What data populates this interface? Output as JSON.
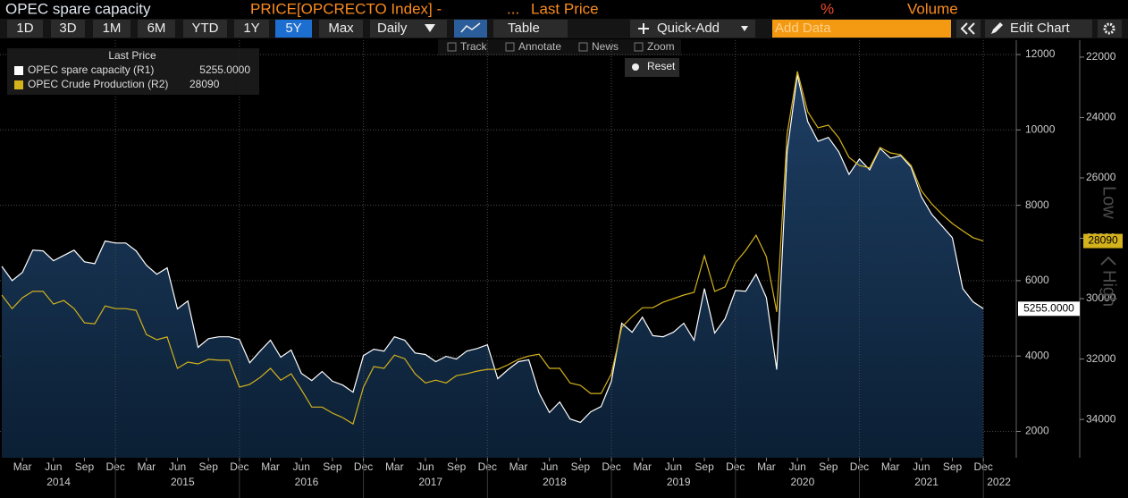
{
  "header": {
    "title": "OPEC spare capacity",
    "ticker": "PRICE[OPCRECTO Index] -",
    "ellipsis": "...",
    "field": "Last Price",
    "percent": "%",
    "volume": "Volume"
  },
  "toolbar": {
    "ranges": [
      "1D",
      "3D",
      "1M",
      "6M",
      "YTD",
      "1Y",
      "5Y",
      "Max"
    ],
    "selected_range": "5Y",
    "frequency": "Daily",
    "table": "Table",
    "quick_add": "Quick-Add",
    "add_data": "Add Data",
    "edit_chart": "Edit Chart"
  },
  "tools": [
    "Track",
    "Annotate",
    "News",
    "Zoom"
  ],
  "reset": "Reset",
  "chart_data": {
    "type": "line",
    "legend_title": "Last Price",
    "x": [
      "2014-01",
      "2014-02",
      "2014-03",
      "2014-04",
      "2014-05",
      "2014-06",
      "2014-07",
      "2014-08",
      "2014-09",
      "2014-10",
      "2014-11",
      "2014-12",
      "2015-01",
      "2015-02",
      "2015-03",
      "2015-04",
      "2015-05",
      "2015-06",
      "2015-07",
      "2015-08",
      "2015-09",
      "2015-10",
      "2015-11",
      "2015-12",
      "2016-01",
      "2016-02",
      "2016-03",
      "2016-04",
      "2016-05",
      "2016-06",
      "2016-07",
      "2016-08",
      "2016-09",
      "2016-10",
      "2016-11",
      "2016-12",
      "2017-01",
      "2017-02",
      "2017-03",
      "2017-04",
      "2017-05",
      "2017-06",
      "2017-07",
      "2017-08",
      "2017-09",
      "2017-10",
      "2017-11",
      "2017-12",
      "2018-01",
      "2018-02",
      "2018-03",
      "2018-04",
      "2018-05",
      "2018-06",
      "2018-07",
      "2018-08",
      "2018-09",
      "2018-10",
      "2018-11",
      "2018-12",
      "2019-01",
      "2019-02",
      "2019-03",
      "2019-04",
      "2019-05",
      "2019-06",
      "2019-07",
      "2019-08",
      "2019-09",
      "2019-10",
      "2019-11",
      "2019-12",
      "2020-01",
      "2020-02",
      "2020-03",
      "2020-04",
      "2020-05",
      "2020-06",
      "2020-07",
      "2020-08",
      "2020-09",
      "2020-10",
      "2020-11",
      "2020-12",
      "2021-01",
      "2021-02",
      "2021-03",
      "2021-04",
      "2021-05",
      "2021-06",
      "2021-07",
      "2021-08",
      "2021-09",
      "2021-10",
      "2021-11",
      "2021-12"
    ],
    "xticks": [
      {
        "value": "2014-03",
        "label": "Mar"
      },
      {
        "value": "2014-06",
        "label": "Jun"
      },
      {
        "value": "2014-09",
        "label": "Sep"
      },
      {
        "value": "2014-12",
        "label": "Dec"
      },
      {
        "value": "2015-03",
        "label": "Mar"
      },
      {
        "value": "2015-06",
        "label": "Jun"
      },
      {
        "value": "2015-09",
        "label": "Sep"
      },
      {
        "value": "2015-12",
        "label": "Dec"
      },
      {
        "value": "2016-03",
        "label": "Mar"
      },
      {
        "value": "2016-06",
        "label": "Jun"
      },
      {
        "value": "2016-09",
        "label": "Sep"
      },
      {
        "value": "2016-12",
        "label": "Dec"
      },
      {
        "value": "2017-03",
        "label": "Mar"
      },
      {
        "value": "2017-06",
        "label": "Jun"
      },
      {
        "value": "2017-09",
        "label": "Sep"
      },
      {
        "value": "2017-12",
        "label": "Dec"
      },
      {
        "value": "2018-03",
        "label": "Mar"
      },
      {
        "value": "2018-06",
        "label": "Jun"
      },
      {
        "value": "2018-09",
        "label": "Sep"
      },
      {
        "value": "2018-12",
        "label": "Dec"
      },
      {
        "value": "2019-03",
        "label": "Mar"
      },
      {
        "value": "2019-06",
        "label": "Jun"
      },
      {
        "value": "2019-09",
        "label": "Sep"
      },
      {
        "value": "2019-12",
        "label": "Dec"
      },
      {
        "value": "2020-03",
        "label": "Mar"
      },
      {
        "value": "2020-06",
        "label": "Jun"
      },
      {
        "value": "2020-09",
        "label": "Sep"
      },
      {
        "value": "2020-12",
        "label": "Dec"
      },
      {
        "value": "2021-03",
        "label": "Mar"
      },
      {
        "value": "2021-06",
        "label": "Jun"
      },
      {
        "value": "2021-09",
        "label": "Sep"
      },
      {
        "value": "2021-12",
        "label": "Dec"
      }
    ],
    "x_years": [
      2014,
      2015,
      2016,
      2017,
      2018,
      2019,
      2020,
      2021,
      2022
    ],
    "series": [
      {
        "name": "OPEC spare capacity (R1)",
        "color": "#ffffff",
        "fill": "#1b3a5c",
        "axis": "y",
        "last_label": "5255.0000",
        "values": [
          6380,
          6000,
          6220,
          6810,
          6790,
          6530,
          6670,
          6810,
          6500,
          6450,
          7050,
          7000,
          7000,
          6790,
          6410,
          6170,
          6340,
          5250,
          5460,
          4230,
          4460,
          4510,
          4510,
          4440,
          3820,
          4130,
          4420,
          3970,
          4160,
          3540,
          3350,
          3590,
          3330,
          3230,
          3040,
          4010,
          4180,
          4130,
          4510,
          4420,
          4080,
          4040,
          3850,
          3990,
          3920,
          4130,
          4200,
          4300,
          3400,
          3640,
          3850,
          3900,
          3020,
          2500,
          2780,
          2330,
          2240,
          2520,
          2660,
          3330,
          4870,
          4630,
          5030,
          4540,
          4510,
          4630,
          4870,
          4420,
          5790,
          4610,
          4990,
          5740,
          5720,
          6170,
          5550,
          3640,
          9420,
          11460,
          10220,
          9700,
          9800,
          9420,
          8820,
          9230,
          8940,
          9510,
          9250,
          9320,
          9010,
          8230,
          7760,
          7450,
          7140,
          5790,
          5440,
          5255
        ]
      },
      {
        "name": "OPEC Crude Production (R2)",
        "color": "#d4b21c",
        "axis": "y2",
        "values": [
          29880,
          30330,
          29970,
          29760,
          29760,
          30180,
          30060,
          30330,
          30800,
          30830,
          30240,
          30330,
          30330,
          30390,
          31190,
          31360,
          31270,
          32310,
          32100,
          32160,
          32010,
          32040,
          32040,
          32930,
          32840,
          32610,
          32310,
          32700,
          32490,
          33020,
          33590,
          33590,
          33790,
          33940,
          34150,
          32930,
          32250,
          32310,
          31870,
          31990,
          32490,
          32790,
          32700,
          32790,
          32550,
          32490,
          32400,
          32340,
          32340,
          32190,
          32010,
          31900,
          31840,
          32310,
          32310,
          32790,
          32870,
          33140,
          33140,
          32490,
          30950,
          30590,
          30300,
          30300,
          30120,
          30000,
          29880,
          29790,
          28580,
          29760,
          29610,
          28810,
          28400,
          27900,
          28610,
          30440,
          24550,
          22470,
          23810,
          24340,
          24250,
          24670,
          25320,
          25590,
          25670,
          24990,
          25170,
          25230,
          25590,
          26420,
          26860,
          27210,
          27510,
          27750,
          27980,
          28090
        ]
      }
    ],
    "ylim": [
      1300,
      12380
    ],
    "yticks": [
      2000,
      4000,
      6000,
      8000,
      10000,
      12000
    ],
    "y2lim": [
      21440,
      35270
    ],
    "y2ticks": [
      22000,
      24000,
      26000,
      28000,
      30000,
      32000,
      34000
    ],
    "y2_inverted": true,
    "y2_label_low": "Low",
    "y2_label_high": "High",
    "grid": true
  }
}
